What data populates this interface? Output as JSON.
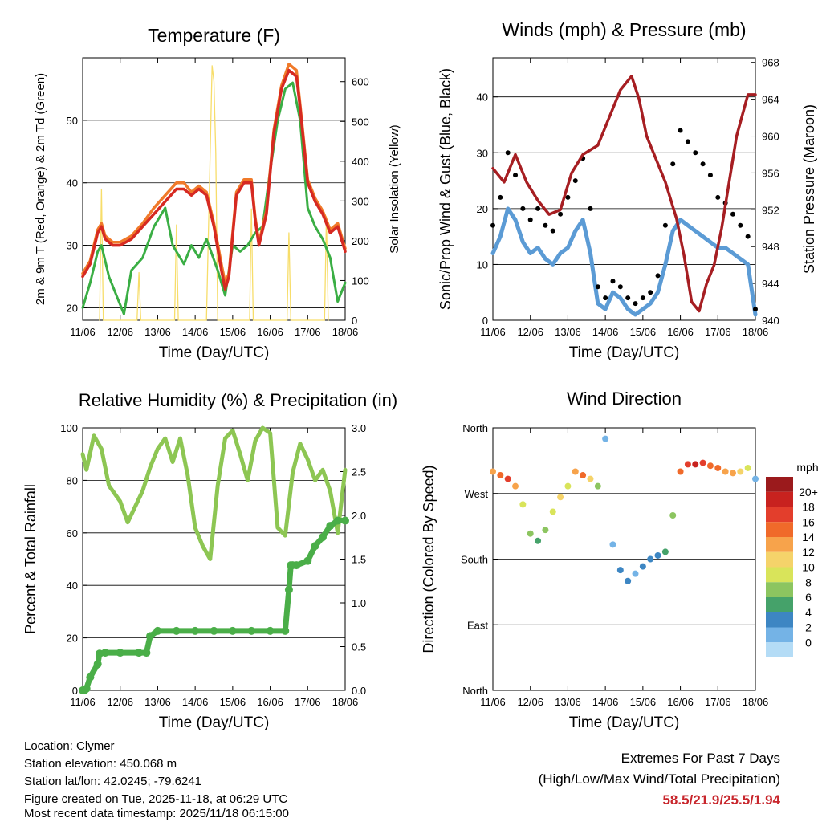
{
  "xticks": [
    "11/06",
    "12/06",
    "13/06",
    "14/06",
    "15/06",
    "16/06",
    "17/06",
    "18/06"
  ],
  "xlabel": "Time (Day/UTC)",
  "chart_data": [
    {
      "type": "line",
      "title": "Temperature (F)",
      "ylabel": "2m & 9m T (Red, Orange) & 2m Td (Green)",
      "y2label": "Solar Insolation (Yellow)",
      "ylim": [
        18,
        60
      ],
      "yticks": [
        20,
        30,
        40,
        50
      ],
      "y2lim": [
        0,
        660
      ],
      "y2ticks": [
        0,
        100,
        200,
        300,
        400,
        500,
        600
      ],
      "series": [
        {
          "name": "2m T",
          "color": "#d62a22",
          "x": [
            0,
            0.2,
            0.4,
            0.5,
            0.6,
            0.8,
            1.0,
            1.3,
            1.6,
            1.9,
            2.2,
            2.5,
            2.7,
            2.9,
            3.1,
            3.3,
            3.5,
            3.7,
            3.8,
            3.9,
            4.1,
            4.3,
            4.5,
            4.6,
            4.7,
            4.9,
            5.1,
            5.3,
            5.5,
            5.7,
            5.8,
            6.0,
            6.2,
            6.4,
            6.6,
            6.8,
            7.0
          ],
          "y": [
            25,
            27,
            32,
            33,
            31,
            30,
            30,
            31,
            33,
            35,
            37,
            39,
            39,
            38,
            39,
            38,
            33,
            26,
            23,
            25,
            38,
            40,
            40,
            34,
            30,
            35,
            48,
            55,
            58,
            57,
            52,
            40,
            37,
            35,
            32,
            33,
            29
          ]
        },
        {
          "name": "9m T",
          "color": "#f07a2a",
          "x": [
            0,
            0.2,
            0.4,
            0.5,
            0.6,
            0.8,
            1.0,
            1.3,
            1.6,
            1.9,
            2.2,
            2.5,
            2.7,
            2.9,
            3.1,
            3.3,
            3.5,
            3.7,
            3.8,
            3.9,
            4.1,
            4.3,
            4.5,
            4.6,
            4.7,
            4.9,
            5.1,
            5.3,
            5.5,
            5.7,
            5.8,
            6.0,
            6.2,
            6.4,
            6.6,
            6.8,
            7.0
          ],
          "y": [
            25.5,
            27.5,
            32.5,
            33.5,
            31.5,
            30.5,
            30.5,
            31.5,
            33.5,
            36,
            38,
            40,
            40,
            38.5,
            39.5,
            38.5,
            33.5,
            27,
            24,
            25.5,
            38.5,
            40.5,
            40.5,
            34.5,
            30.5,
            35.5,
            48.5,
            55.5,
            59,
            58,
            52.5,
            40.5,
            37.5,
            35.5,
            32.5,
            33.5,
            29.5
          ]
        },
        {
          "name": "2m Td",
          "color": "#3aae44",
          "x": [
            0,
            0.2,
            0.4,
            0.5,
            0.7,
            0.9,
            1.1,
            1.3,
            1.6,
            1.9,
            2.2,
            2.4,
            2.7,
            2.9,
            3.1,
            3.3,
            3.6,
            3.8,
            4.0,
            4.2,
            4.4,
            4.6,
            4.8,
            5.0,
            5.2,
            5.4,
            5.6,
            5.8,
            6.0,
            6.2,
            6.4,
            6.6,
            6.8,
            7.0
          ],
          "y": [
            20,
            24,
            29,
            30,
            25,
            22,
            19,
            26,
            28,
            33,
            36,
            30,
            27,
            30,
            28,
            31,
            26,
            22,
            30,
            29,
            30,
            32,
            33,
            42,
            50,
            55,
            56,
            50,
            36,
            33,
            31,
            28,
            21,
            24
          ]
        },
        {
          "name": "Solar",
          "color": "#f7dd6a",
          "x": [
            0.45,
            0.5,
            0.55,
            1.45,
            1.5,
            1.55,
            2.45,
            2.5,
            2.55,
            3.3,
            3.4,
            3.45,
            3.5,
            3.55,
            3.6,
            4.45,
            4.5,
            4.55,
            5.45,
            5.5,
            5.55,
            6.45,
            6.5,
            6.55
          ],
          "y": [
            0,
            330,
            0,
            0,
            120,
            0,
            0,
            240,
            0,
            0,
            420,
            640,
            600,
            420,
            0,
            0,
            280,
            0,
            0,
            220,
            0,
            0,
            260,
            0
          ]
        }
      ]
    },
    {
      "type": "line",
      "title": "Winds (mph) & Pressure (mb)",
      "ylabel": "Sonic/Prop Wind & Gust (Blue, Black)",
      "y2label": "Station Pressure (Maroon)",
      "ylim": [
        0,
        47
      ],
      "yticks": [
        0,
        10,
        20,
        30,
        40
      ],
      "y2lim": [
        940,
        968.5
      ],
      "y2ticks": [
        940,
        944,
        948,
        952,
        956,
        960,
        964,
        968
      ],
      "series": [
        {
          "name": "Sonic/Prop Wind",
          "color": "#5b9bd5",
          "x": [
            0,
            0.2,
            0.4,
            0.6,
            0.8,
            1.0,
            1.2,
            1.4,
            1.6,
            1.8,
            2.0,
            2.2,
            2.4,
            2.6,
            2.8,
            3.0,
            3.2,
            3.4,
            3.6,
            3.8,
            4.0,
            4.2,
            4.4,
            4.6,
            4.8,
            5.0,
            5.2,
            5.4,
            5.6,
            5.8,
            6.0,
            6.2,
            6.4,
            6.6,
            6.8,
            7.0
          ],
          "y": [
            12,
            15,
            20,
            18,
            14,
            12,
            13,
            11,
            10,
            12,
            13,
            16,
            18,
            12,
            3,
            2,
            5,
            4,
            2,
            1,
            2,
            3,
            5,
            10,
            16,
            18,
            17,
            16,
            15,
            14,
            13,
            13,
            12,
            11,
            10,
            1
          ]
        },
        {
          "name": "Gust",
          "color": "#000000",
          "x": [
            0,
            0.2,
            0.4,
            0.6,
            0.8,
            1.0,
            1.2,
            1.4,
            1.6,
            1.8,
            2.0,
            2.2,
            2.4,
            2.6,
            2.8,
            3.0,
            3.2,
            3.4,
            3.6,
            3.8,
            4.0,
            4.2,
            4.4,
            4.6,
            4.8,
            5.0,
            5.2,
            5.4,
            5.6,
            5.8,
            6.0,
            6.2,
            6.4,
            6.6,
            6.8,
            7.0
          ],
          "y": [
            17,
            22,
            30,
            26,
            20,
            18,
            20,
            17,
            16,
            19,
            22,
            25,
            29,
            20,
            6,
            4,
            7,
            6,
            4,
            3,
            4,
            5,
            8,
            17,
            28,
            34,
            32,
            30,
            28,
            26,
            22,
            21,
            19,
            17,
            15,
            2
          ]
        },
        {
          "name": "Station Pressure",
          "color": "#a61e22",
          "x": [
            0,
            0.3,
            0.6,
            0.9,
            1.2,
            1.5,
            1.8,
            2.1,
            2.4,
            2.8,
            3.1,
            3.4,
            3.7,
            3.9,
            4.1,
            4.3,
            4.6,
            4.9,
            5.1,
            5.3,
            5.5,
            5.7,
            5.9,
            6.1,
            6.3,
            6.5,
            6.8,
            7.0
          ],
          "y": [
            956.5,
            955,
            958,
            955,
            953,
            951.5,
            952,
            956,
            958,
            959,
            962,
            965,
            966.5,
            964,
            960,
            958,
            955,
            951,
            947,
            942,
            941,
            944,
            946,
            950,
            955,
            960,
            964.5,
            964.5
          ]
        }
      ]
    },
    {
      "type": "line",
      "title": "Relative Humidity (%) & Precipitation (in)",
      "ylabel": "Percent & Total Rainfall",
      "ylim": [
        0,
        100
      ],
      "yticks": [
        0,
        20,
        40,
        60,
        80,
        100
      ],
      "y2lim": [
        0,
        3.0
      ],
      "y2ticks": [
        "0.0",
        "0.5",
        "1.0",
        "1.5",
        "2.0",
        "2.5",
        "3.0"
      ],
      "series": [
        {
          "name": "Relative Humidity",
          "color": "#8dc653",
          "x": [
            0,
            0.1,
            0.3,
            0.5,
            0.7,
            1.0,
            1.2,
            1.4,
            1.6,
            1.8,
            2.0,
            2.2,
            2.4,
            2.6,
            2.8,
            3.0,
            3.2,
            3.4,
            3.6,
            3.8,
            4.0,
            4.2,
            4.4,
            4.6,
            4.8,
            5.0,
            5.2,
            5.4,
            5.6,
            5.8,
            6.0,
            6.2,
            6.4,
            6.6,
            6.8,
            7.0
          ],
          "y": [
            90,
            84,
            97,
            92,
            78,
            72,
            64,
            70,
            76,
            85,
            92,
            96,
            87,
            96,
            82,
            62,
            55,
            50,
            78,
            96,
            99,
            90,
            80,
            95,
            100,
            98,
            62,
            59,
            83,
            94,
            88,
            80,
            84,
            76,
            60,
            84
          ]
        },
        {
          "name": "Total Precipitation",
          "color": "#4aae48",
          "x": [
            0,
            0.05,
            0.1,
            0.2,
            0.4,
            0.45,
            0.6,
            1.0,
            1.5,
            1.7,
            1.8,
            2.0,
            2.5,
            3.0,
            3.5,
            4.0,
            4.5,
            5.0,
            5.4,
            5.5,
            5.55,
            5.6,
            5.7,
            6.0,
            6.2,
            6.4,
            6.6,
            6.8,
            7.0
          ],
          "y": [
            0,
            0,
            0.02,
            0.15,
            0.3,
            0.42,
            0.43,
            0.43,
            0.43,
            0.43,
            0.62,
            0.68,
            0.68,
            0.68,
            0.68,
            0.68,
            0.68,
            0.68,
            0.68,
            1.15,
            1.43,
            1.43,
            1.43,
            1.48,
            1.65,
            1.75,
            1.88,
            1.94,
            1.94
          ]
        }
      ]
    },
    {
      "type": "scatter",
      "title": "Wind Direction",
      "ylabel": "Direction (Colored By Speed)",
      "ylim": [
        0,
        360
      ],
      "yticks": [
        "North",
        "East",
        "South",
        "West",
        "North"
      ],
      "colorbar_title": "mph",
      "colorbar_labels": [
        "20+",
        "18",
        "16",
        "14",
        "12",
        "10",
        "8",
        "6",
        "4",
        "2",
        "0"
      ],
      "colorbar_colors": [
        "#9b1a1c",
        "#c8221f",
        "#e33e2c",
        "#f06a2a",
        "#f7a34b",
        "#f5d36a",
        "#d9e45a",
        "#8cc560",
        "#45a26a",
        "#3d86c3",
        "#74b3e6",
        "#b4dcf6"
      ],
      "x": [
        0,
        0.2,
        0.4,
        0.6,
        0.8,
        1.0,
        1.2,
        1.4,
        1.6,
        1.8,
        2.0,
        2.2,
        2.4,
        2.6,
        2.8,
        3.0,
        3.2,
        3.4,
        3.6,
        3.8,
        4.0,
        4.2,
        4.4,
        4.6,
        4.8,
        5.0,
        5.2,
        5.4,
        5.6,
        5.8,
        6.0,
        6.2,
        6.4,
        6.6,
        6.8,
        7.0
      ],
      "y": [
        300,
        295,
        290,
        280,
        255,
        215,
        205,
        220,
        245,
        265,
        280,
        300,
        295,
        290,
        280,
        345,
        200,
        165,
        150,
        160,
        170,
        180,
        185,
        190,
        240,
        300,
        310,
        310,
        312,
        308,
        305,
        300,
        298,
        300,
        305,
        290
      ],
      "speed": [
        14,
        16,
        18,
        14,
        10,
        8,
        6,
        8,
        10,
        12,
        10,
        14,
        16,
        12,
        8,
        2,
        2,
        3,
        3,
        2,
        3,
        4,
        4,
        5,
        8,
        16,
        18,
        20,
        18,
        16,
        16,
        14,
        14,
        12,
        10,
        2
      ]
    }
  ],
  "footer": {
    "location": "Location: Clymer",
    "elevation": "Station elevation: 450.068 m",
    "latlon": "Station lat/lon: 42.0245; -79.6241",
    "created": "Figure created on Tue, 2025-11-18, at 06:29 UTC",
    "recent": "Most recent data timestamp: 2025/11/18 06:15:00",
    "extremes_title": "Extremes For Past 7 Days",
    "extremes_sub": "(High/Low/Max Wind/Total Precipitation)",
    "extremes_values": "58.5/21.9/25.5/1.94",
    "extremes_color": "#c8262c"
  }
}
